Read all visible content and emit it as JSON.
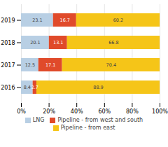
{
  "chart_data": {
    "type": "bar",
    "orientation": "horizontal",
    "stacked": true,
    "categories": [
      "2016",
      "2017",
      "2018",
      "2019"
    ],
    "series": [
      {
        "name": "LNG",
        "color": "#b8cfe4",
        "values": [
          8.4,
          12.5,
          20.1,
          23.1
        ]
      },
      {
        "name": "Pipeline - from west and south",
        "color": "#e04a2a",
        "values": [
          2.7,
          17.1,
          13.1,
          16.7
        ]
      },
      {
        "name": "Pipeline - from east",
        "color": "#f5c518",
        "values": [
          88.9,
          70.4,
          66.8,
          60.2
        ]
      }
    ],
    "xlim": [
      0,
      100
    ],
    "xticks": [
      {
        "value": 0,
        "label": "0%"
      },
      {
        "value": 20,
        "label": "20%"
      },
      {
        "value": 40,
        "label": "40%"
      },
      {
        "value": 60,
        "label": "60%"
      },
      {
        "value": 80,
        "label": "80%"
      },
      {
        "value": 100,
        "label": "100%"
      }
    ],
    "grid": true,
    "legend": "bottom",
    "data_labels": true
  }
}
